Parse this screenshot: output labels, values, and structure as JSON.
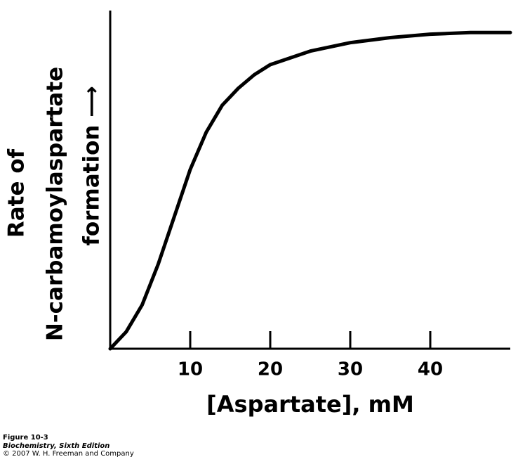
{
  "chart_data": {
    "type": "line",
    "x_label": "[Aspartate], mM",
    "y_label_lines": [
      "Rate of",
      "N-carbamoylaspartate",
      "formation ⟶"
    ],
    "x": [
      0,
      2,
      4,
      5,
      6,
      8,
      10,
      12,
      14,
      16,
      18,
      20,
      25,
      30,
      35,
      40,
      45,
      50
    ],
    "series": [
      {
        "color": "#000000",
        "values": [
          0,
          5,
          13,
          19,
          25,
          39,
          53,
          64,
          72,
          77,
          81,
          84,
          88,
          90.5,
          92,
          93,
          93.5,
          93.5
        ]
      }
    ],
    "xlim": [
      0,
      50
    ],
    "ylim": [
      0,
      100
    ],
    "xticks": [
      10,
      20,
      30,
      40
    ]
  },
  "caption": {
    "figure": "Figure 10-3",
    "book": "Biochemistry, Sixth Edition",
    "copyright": "© 2007 W. H. Freeman and Company"
  }
}
